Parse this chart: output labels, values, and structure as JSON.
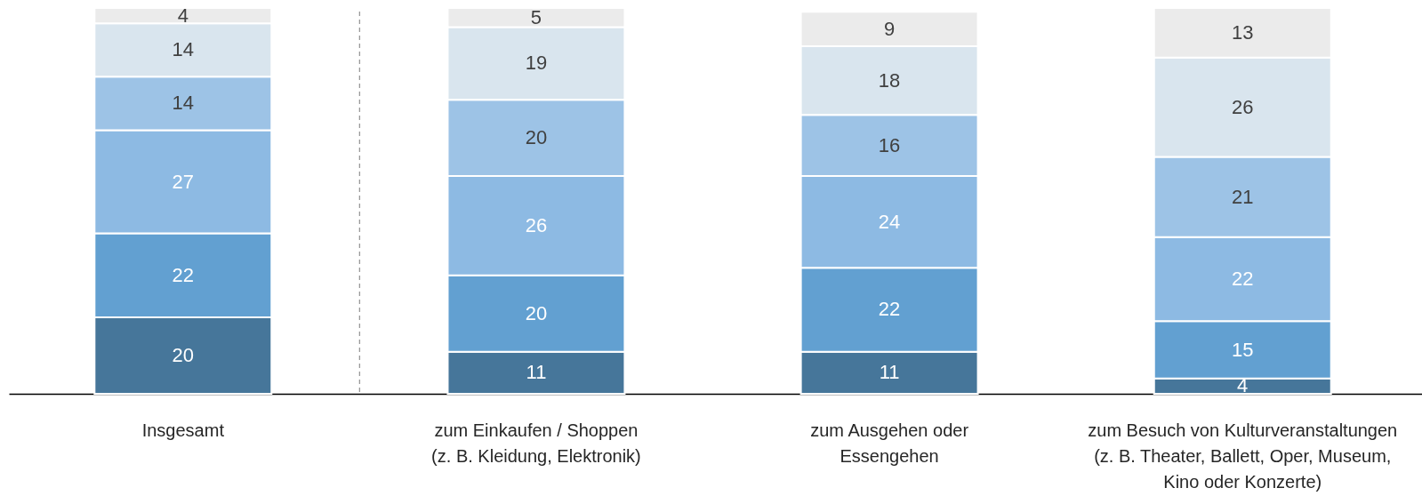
{
  "chart_data": {
    "type": "bar",
    "stacked": true,
    "data_labels": true,
    "categories": [
      "Insgesamt",
      "zum Einkaufen / Shoppen\n(z. B. Kleidung, Elektronik)",
      "zum Ausgehen oder\nEssengehen",
      "zum Besuch von Kulturveranstaltungen\n(z. B. Theater, Ballett, Oper, Museum,\nKino oder Konzerte)"
    ],
    "series": [
      {
        "color": "#46769a",
        "values": [
          20,
          11,
          11,
          4
        ]
      },
      {
        "color": "#62a0d1",
        "values": [
          22,
          20,
          22,
          15
        ]
      },
      {
        "color": "#8dbae3",
        "values": [
          27,
          26,
          24,
          22
        ]
      },
      {
        "color": "#9dc3e6",
        "values": [
          14,
          20,
          16,
          21
        ]
      },
      {
        "color": "#d9e5ee",
        "values": [
          14,
          19,
          18,
          26
        ]
      },
      {
        "color": "#ebebeb",
        "values": [
          4,
          5,
          9,
          13
        ]
      }
    ]
  }
}
